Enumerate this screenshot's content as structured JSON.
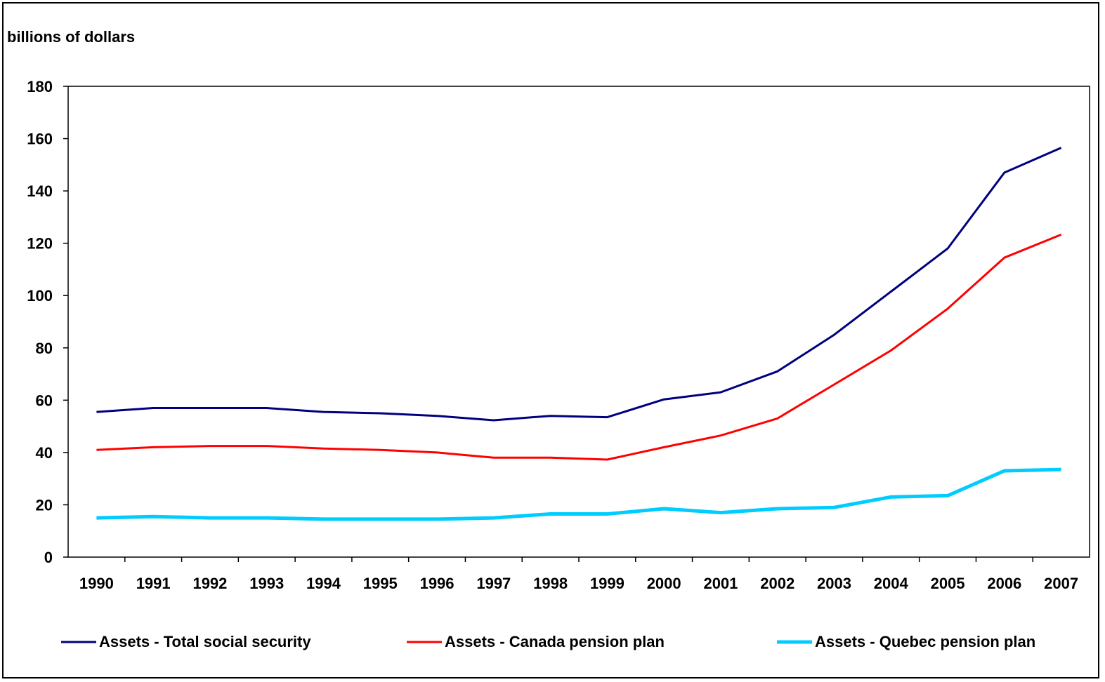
{
  "chart_data": {
    "type": "line",
    "title": "",
    "xlabel": "",
    "ylabel": "billions of dollars",
    "ylim": [
      0,
      180
    ],
    "yticks": [
      0,
      20,
      40,
      60,
      80,
      100,
      120,
      140,
      160,
      180
    ],
    "grid": false,
    "legend_position": "bottom",
    "categories": [
      "1990",
      "1991",
      "1992",
      "1993",
      "1994",
      "1995",
      "1996",
      "1997",
      "1998",
      "1999",
      "2000",
      "2001",
      "2002",
      "2003",
      "2004",
      "2005",
      "2006",
      "2007"
    ],
    "series": [
      {
        "name": "Assets - Total social security",
        "color": "#000080",
        "values": [
          55.5,
          57,
          57,
          57,
          55.5,
          55,
          54,
          52.3,
          54,
          53.5,
          60.3,
          63,
          71,
          85,
          101.5,
          118,
          147,
          156.5
        ]
      },
      {
        "name": "Assets - Canada pension plan",
        "color": "#ff0000",
        "values": [
          41,
          42,
          42.5,
          42.5,
          41.5,
          41,
          40,
          38,
          38,
          37.3,
          42,
          46.5,
          53,
          66,
          79,
          95,
          114.5,
          123.3
        ]
      },
      {
        "name": "Assets - Quebec pension plan",
        "color": "#00ccff",
        "values": [
          15,
          15.5,
          15,
          15,
          14.5,
          14.5,
          14.5,
          15,
          16.5,
          16.5,
          18.5,
          17,
          18.5,
          19,
          23,
          23.5,
          33,
          33.5
        ]
      }
    ]
  }
}
